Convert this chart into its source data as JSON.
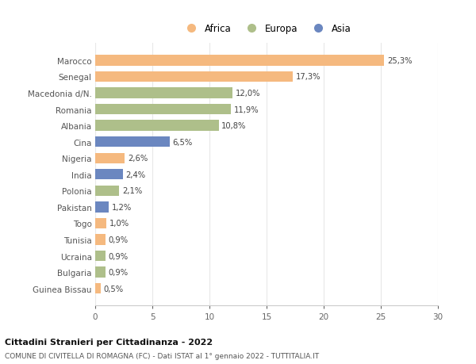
{
  "countries": [
    "Marocco",
    "Senegal",
    "Macedonia d/N.",
    "Romania",
    "Albania",
    "Cina",
    "Nigeria",
    "India",
    "Polonia",
    "Pakistan",
    "Togo",
    "Tunisia",
    "Ucraina",
    "Bulgaria",
    "Guinea Bissau"
  ],
  "values": [
    25.3,
    17.3,
    12.0,
    11.9,
    10.8,
    6.5,
    2.6,
    2.4,
    2.1,
    1.2,
    1.0,
    0.9,
    0.9,
    0.9,
    0.5
  ],
  "labels": [
    "25,3%",
    "17,3%",
    "12,0%",
    "11,9%",
    "10,8%",
    "6,5%",
    "2,6%",
    "2,4%",
    "2,1%",
    "1,2%",
    "1,0%",
    "0,9%",
    "0,9%",
    "0,9%",
    "0,5%"
  ],
  "continents": [
    "Africa",
    "Africa",
    "Europa",
    "Europa",
    "Europa",
    "Asia",
    "Africa",
    "Asia",
    "Europa",
    "Asia",
    "Africa",
    "Africa",
    "Europa",
    "Europa",
    "Africa"
  ],
  "colors": {
    "Africa": "#F5B97F",
    "Europa": "#AEBF8A",
    "Asia": "#6B87C0"
  },
  "legend_labels": [
    "Africa",
    "Europa",
    "Asia"
  ],
  "xlim": [
    0,
    30
  ],
  "xticks": [
    0,
    5,
    10,
    15,
    20,
    25,
    30
  ],
  "title": "Cittadini Stranieri per Cittadinanza - 2022",
  "subtitle": "COMUNE DI CIVITELLA DI ROMAGNA (FC) - Dati ISTAT al 1° gennaio 2022 - TUTTITALIA.IT",
  "background_color": "#ffffff",
  "grid_color": "#e8e8e8",
  "bar_height": 0.65
}
